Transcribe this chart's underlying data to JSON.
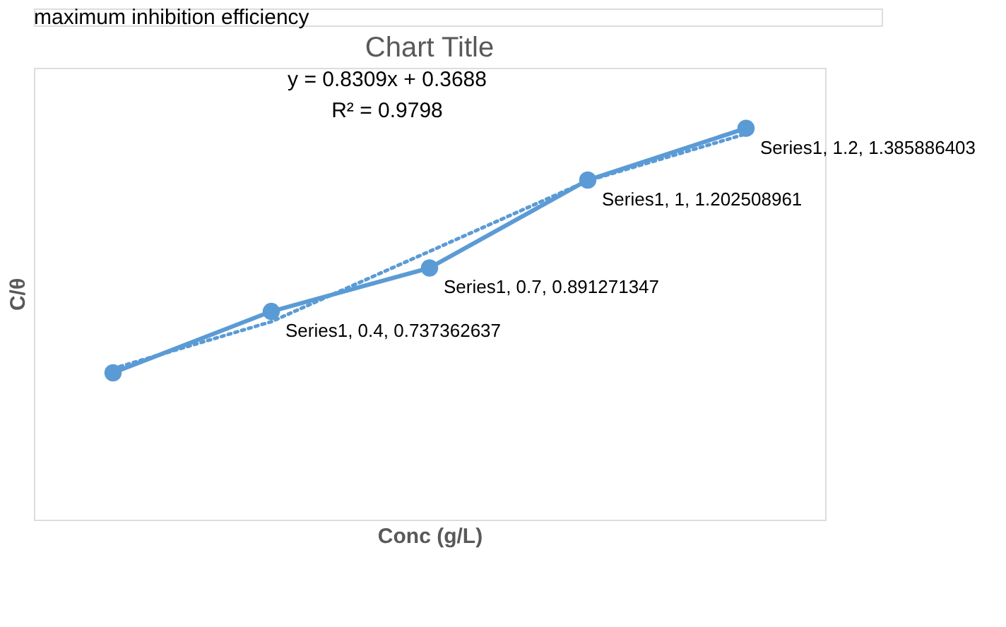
{
  "chart_data": {
    "type": "line",
    "title": "Chart Title",
    "xlabel": "Conc (g/L)",
    "ylabel": "C/θ",
    "annotations": [
      "maximum inhibition efficiency",
      "y = 0.8309x + 0.3688",
      "R² = 0.9798"
    ],
    "categories": [
      null,
      null,
      null,
      null,
      null
    ],
    "series": [
      {
        "color": "#5b9bd5",
        "values": [
          0.52,
          0.737362637,
          0.891271347,
          1.202508961,
          1.385886403
        ],
        "marker": "circle",
        "line_style": "solid",
        "value_labels": [
          null,
          "Series1, 0.4, 0.737362637",
          "Series1, 0.7, 0.891271347",
          "Series1, 1, 1.202508961",
          "Series1, 1.2, 1.385886403"
        ]
      },
      {
        "color": "#5b9bd5",
        "values": [
          0.535,
          0.701,
          0.95,
          1.2,
          1.366
        ],
        "marker": "none",
        "line_style": "dotted"
      }
    ],
    "ylim": [
      0,
      1.6
    ],
    "tick_labels": false,
    "grid": false
  }
}
